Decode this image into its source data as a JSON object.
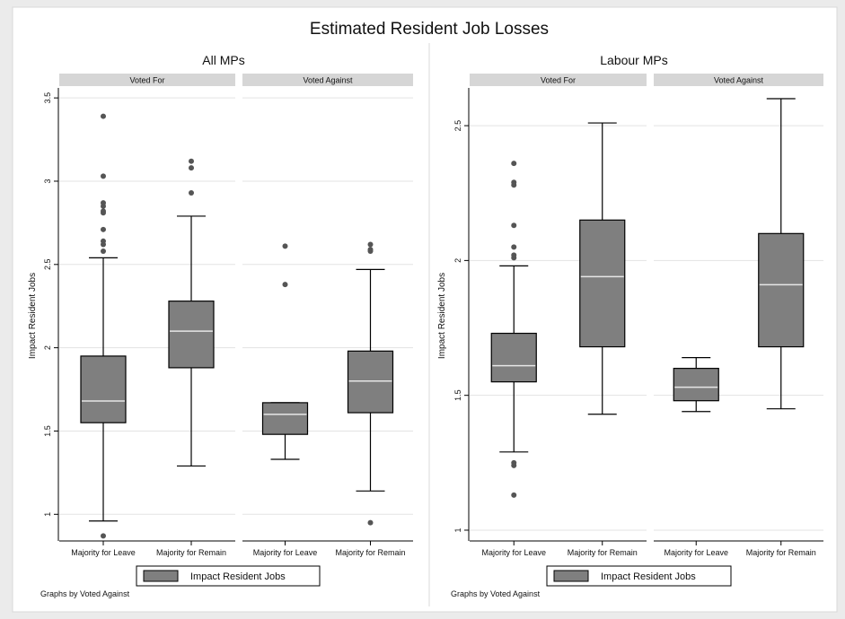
{
  "title": "Estimated Resident Job Losses",
  "chart_data": [
    {
      "type": "box",
      "title": "All MPs",
      "ylabel": "Impact Resident Jobs",
      "ylim": [
        0.84,
        3.56
      ],
      "yticks": [
        1,
        1.5,
        2,
        2.5,
        3,
        3.5
      ],
      "ytick_labels": [
        "1",
        "1.5",
        "2",
        "2.5",
        "3",
        "3.5"
      ],
      "legend": "Impact Resident Jobs",
      "note": "Graphs by Voted Against",
      "panels": [
        {
          "label": "Voted For",
          "boxes": [
            {
              "category": "Majority for Leave",
              "whisker_low": 0.96,
              "q1": 1.55,
              "median": 1.68,
              "q3": 1.95,
              "whisker_high": 2.54,
              "outliers": [
                0.87,
                2.58,
                2.62,
                2.64,
                2.71,
                2.81,
                2.82,
                2.85,
                2.87,
                3.03,
                3.39
              ]
            },
            {
              "category": "Majority for Remain",
              "whisker_low": 1.29,
              "q1": 1.88,
              "median": 2.1,
              "q3": 2.28,
              "whisker_high": 2.79,
              "outliers": [
                2.93,
                3.08,
                3.12
              ]
            }
          ]
        },
        {
          "label": "Voted Against",
          "boxes": [
            {
              "category": "Majority for Leave",
              "whisker_low": 1.33,
              "q1": 1.48,
              "median": 1.6,
              "q3": 1.67,
              "whisker_high": 1.67,
              "outliers": [
                2.38,
                2.61
              ]
            },
            {
              "category": "Majority for Remain",
              "whisker_low": 1.14,
              "q1": 1.61,
              "median": 1.8,
              "q3": 1.98,
              "whisker_high": 2.47,
              "outliers": [
                0.95,
                2.58,
                2.59,
                2.62
              ]
            }
          ]
        }
      ]
    },
    {
      "type": "box",
      "title": "Labour MPs",
      "ylabel": "Impact Resident Jobs",
      "ylim": [
        0.96,
        2.64
      ],
      "yticks": [
        1,
        1.5,
        2,
        2.5
      ],
      "ytick_labels": [
        "1",
        "1.5",
        "2",
        "2.5"
      ],
      "legend": "Impact Resident Jobs",
      "note": "Graphs by Voted Against",
      "panels": [
        {
          "label": "Voted For",
          "boxes": [
            {
              "category": "Majority for Leave",
              "whisker_low": 1.29,
              "q1": 1.55,
              "median": 1.61,
              "q3": 1.73,
              "whisker_high": 1.98,
              "outliers": [
                1.13,
                1.24,
                1.25,
                2.01,
                2.02,
                2.05,
                2.13,
                2.28,
                2.29,
                2.36
              ]
            },
            {
              "category": "Majority for Remain",
              "whisker_low": 1.43,
              "q1": 1.68,
              "median": 1.94,
              "q3": 2.15,
              "whisker_high": 2.51,
              "outliers": []
            }
          ]
        },
        {
          "label": "Voted Against",
          "boxes": [
            {
              "category": "Majority for Leave",
              "whisker_low": 1.44,
              "q1": 1.48,
              "median": 1.53,
              "q3": 1.6,
              "whisker_high": 1.64,
              "outliers": []
            },
            {
              "category": "Majority for Remain",
              "whisker_low": 1.45,
              "q1": 1.68,
              "median": 1.91,
              "q3": 2.1,
              "whisker_high": 2.6,
              "outliers": []
            }
          ]
        }
      ]
    }
  ]
}
